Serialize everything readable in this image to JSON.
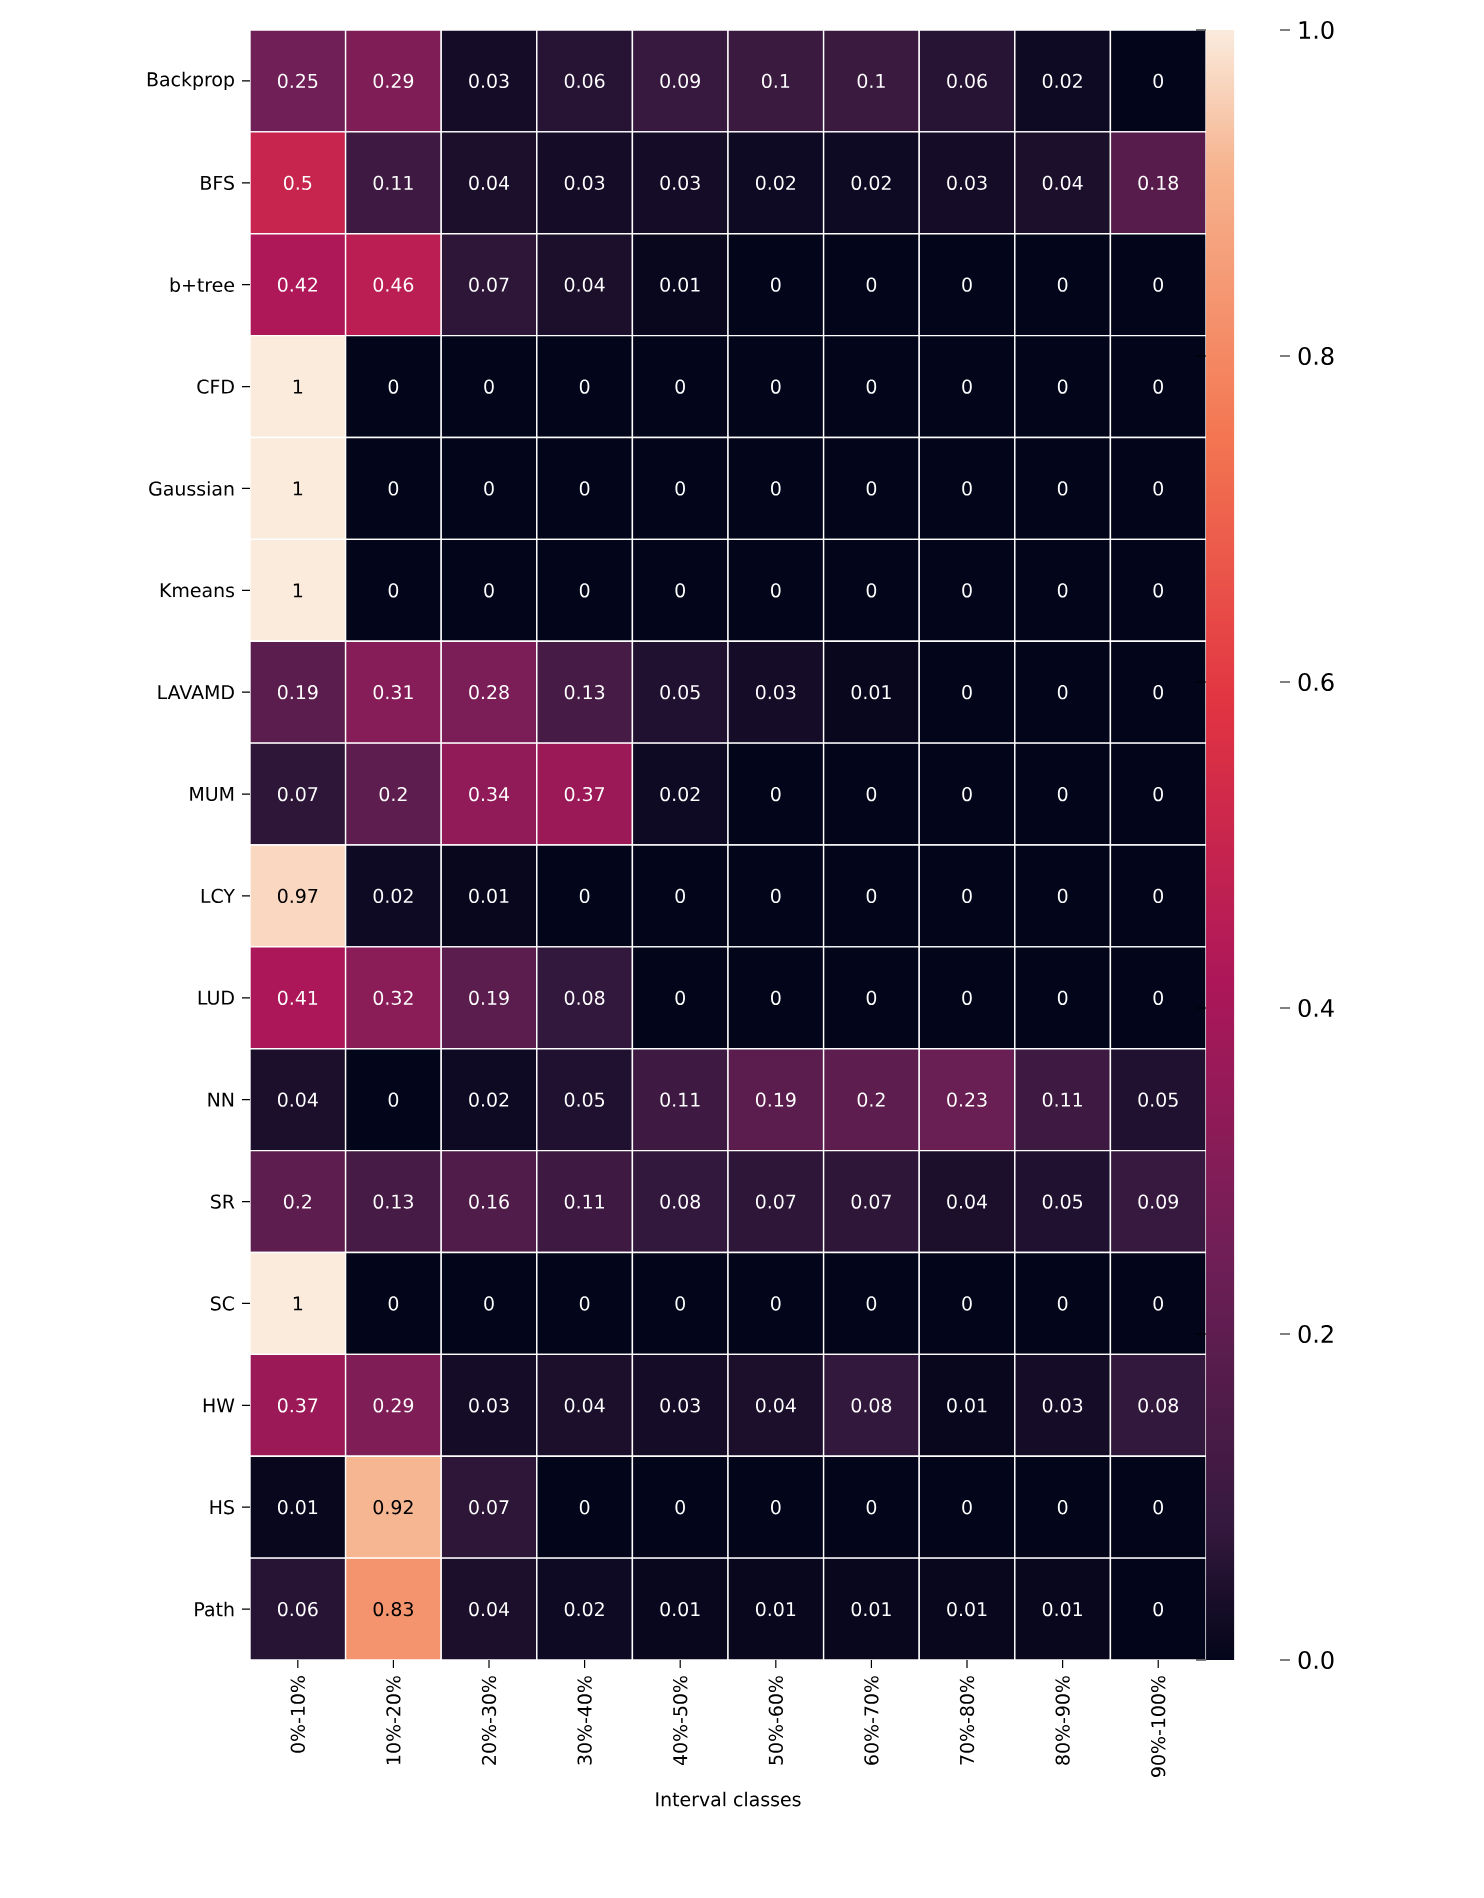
{
  "chart_data": {
    "type": "heatmap",
    "xlabel": "Interval classes",
    "categories": [
      "0%-10%",
      "10%-20%",
      "20%-30%",
      "30%-40%",
      "40%-50%",
      "50%-60%",
      "60%-70%",
      "70%-80%",
      "80%-90%",
      "90%-100%"
    ],
    "y_categories": [
      "Backprop",
      "BFS",
      "b+tree",
      "CFD",
      "Gaussian",
      "Kmeans",
      "LAVAMD",
      "MUM",
      "LCY",
      "LUD",
      "NN",
      "SR",
      "SC",
      "HW",
      "HS",
      "Path"
    ],
    "cells": [
      [
        0.25,
        0.29,
        0.03,
        0.06,
        0.09,
        0.1,
        0.1,
        0.06,
        0.02,
        0
      ],
      [
        0.5,
        0.11,
        0.04,
        0.03,
        0.03,
        0.02,
        0.02,
        0.03,
        0.04,
        0.18
      ],
      [
        0.42,
        0.46,
        0.07,
        0.04,
        0.01,
        0,
        0,
        0,
        0,
        0
      ],
      [
        1,
        0,
        0,
        0,
        0,
        0,
        0,
        0,
        0,
        0
      ],
      [
        1,
        0,
        0,
        0,
        0,
        0,
        0,
        0,
        0,
        0
      ],
      [
        1,
        0,
        0,
        0,
        0,
        0,
        0,
        0,
        0,
        0
      ],
      [
        0.19,
        0.31,
        0.28,
        0.13,
        0.05,
        0.03,
        0.01,
        0,
        0,
        0
      ],
      [
        0.07,
        0.2,
        0.34,
        0.37,
        0.02,
        0,
        0,
        0,
        0,
        0
      ],
      [
        0.97,
        0.02,
        0.01,
        0,
        0,
        0,
        0,
        0,
        0,
        0
      ],
      [
        0.41,
        0.32,
        0.19,
        0.08,
        0,
        0,
        0,
        0,
        0,
        0
      ],
      [
        0.04,
        0,
        0.02,
        0.05,
        0.11,
        0.19,
        0.2,
        0.23,
        0.11,
        0.05
      ],
      [
        0.2,
        0.13,
        0.16,
        0.11,
        0.08,
        0.07,
        0.07,
        0.04,
        0.05,
        0.09
      ],
      [
        1,
        0,
        0,
        0,
        0,
        0,
        0,
        0,
        0,
        0
      ],
      [
        0.37,
        0.29,
        0.03,
        0.04,
        0.03,
        0.04,
        0.08,
        0.01,
        0.03,
        0.08
      ],
      [
        0.01,
        0.92,
        0.07,
        0,
        0,
        0,
        0,
        0,
        0,
        0
      ],
      [
        0.06,
        0.83,
        0.04,
        0.02,
        0.01,
        0.01,
        0.01,
        0.01,
        0.01,
        0
      ]
    ],
    "clim": [
      0,
      1
    ],
    "cticks": [
      {
        "value": 0,
        "label": "0.0"
      },
      {
        "value": 0.2,
        "label": "0.2"
      },
      {
        "value": 0.4,
        "label": "0.4"
      },
      {
        "value": 0.6,
        "label": "0.6"
      },
      {
        "value": 0.8,
        "label": "0.8"
      },
      {
        "value": 1,
        "label": "1.0"
      }
    ],
    "data_labels": true
  }
}
